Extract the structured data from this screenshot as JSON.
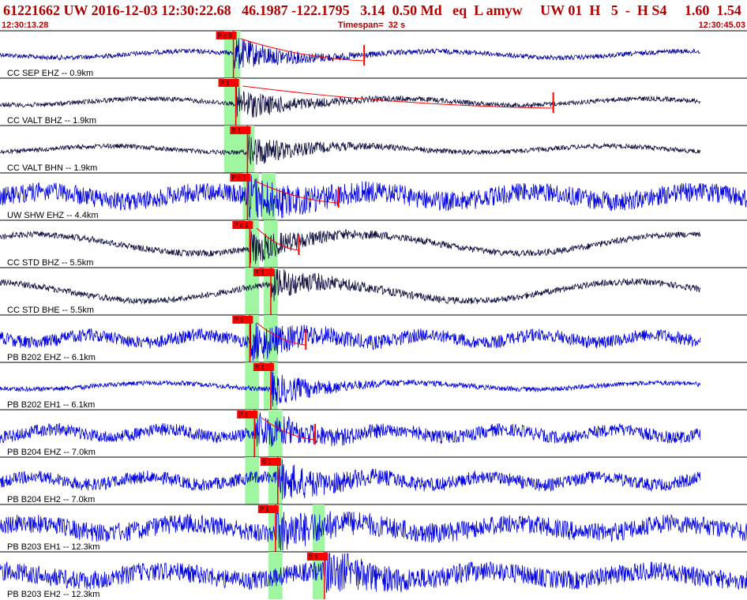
{
  "header": {
    "title": "61221662 UW 2016-12-03 12:30:22.68   46.1987 -122.1795   3.14  0.50 Md   eq  L amyw     UW 01  H   5  -  H S4     1.60  1.54",
    "start_time": "12:30:13.28",
    "timespan": "Timespan=  32 s",
    "end_time": "12:30:45.03"
  },
  "colors": {
    "header_text": "#b00000",
    "trace_blue": "#0000e0",
    "trace_dark": "#101040",
    "pick": "#ff0000",
    "window": "#a0f5a0",
    "separator": "#000000"
  },
  "chart_data": {
    "type": "line",
    "x_unit": "s",
    "xlim": [
      0,
      32
    ],
    "channels": [
      {
        "label": "CC SEP EHZ -- 0.9km",
        "color": "dark_blue",
        "amp": "low",
        "p_window": [
          9.6,
          10.3
        ],
        "p_pick": {
          "label": "P c 0",
          "time": 10.0
        },
        "coda_mark": 15.6
      },
      {
        "label": "CC VALT BHZ -- 1.9km",
        "color": "dark",
        "amp": "low",
        "p_window": [
          9.6,
          10.3
        ],
        "p_pick": {
          "label": "P  1",
          "time": 10.1
        },
        "coda_mark": 23.7
      },
      {
        "label": "CC VALT BHN -- 1.9km",
        "color": "dark",
        "amp": "low",
        "p_window": [
          9.6,
          10.3
        ],
        "s_window": [
          10.3,
          10.9
        ],
        "s_pick": {
          "label": "S  1",
          "time": 10.6
        }
      },
      {
        "label": "UW SHW EHZ -- 4.4km",
        "color": "blue",
        "amp": "high",
        "p_window": [
          10.4,
          11.1
        ],
        "s_window": [
          11.2,
          11.8
        ],
        "p_pick": {
          "label": "P c 1",
          "time": 10.6
        },
        "coda_mark": 14.5
      },
      {
        "label": "CC STD BHZ -- 5.5km",
        "color": "dark",
        "amp": "slow",
        "p_window": [
          10.5,
          11.1
        ],
        "s_window": [
          11.3,
          11.9
        ],
        "p_pick": {
          "label": "P c 1",
          "time": 10.7
        },
        "coda_mark": 12.8
      },
      {
        "label": "CC STD BHE -- 5.5km",
        "color": "dark",
        "amp": "slow",
        "p_window": [
          10.5,
          11.1
        ],
        "s_window": [
          11.3,
          11.9
        ],
        "s_pick": {
          "label": "S  1",
          "time": 11.6
        }
      },
      {
        "label": "PB B202 EHZ -- 6.1km",
        "color": "blue",
        "amp": "mid",
        "p_window": [
          10.5,
          11.1
        ],
        "s_window": [
          11.3,
          11.9
        ],
        "p_pick": {
          "label": "P  1",
          "time": 10.7
        },
        "coda_mark": 13.1
      },
      {
        "label": "PB B202 EH1 -- 6.1km",
        "color": "blue",
        "amp": "low",
        "p_window": [
          10.5,
          11.1
        ],
        "s_window": [
          11.3,
          11.9
        ],
        "s_pick": {
          "label": "S  1",
          "time": 11.6
        }
      },
      {
        "label": "PB B204 EHZ -- 7.0km",
        "color": "blue",
        "amp": "mid",
        "p_window": [
          10.5,
          11.1
        ],
        "s_window": [
          11.5,
          12.1
        ],
        "p_pick": {
          "label": "P  1",
          "time": 10.9
        },
        "coda_mark": 13.5
      },
      {
        "label": "PB B204 EH2 -- 7.0km",
        "color": "blue",
        "amp": "mid",
        "p_window": [
          10.5,
          11.1
        ],
        "s_window": [
          11.5,
          12.1
        ],
        "s_pick": {
          "label": "S  1",
          "time": 11.9
        }
      },
      {
        "label": "PB B203 EH1 -- 12.3km",
        "color": "blue",
        "amp": "high",
        "s_window": [
          11.5,
          12.1
        ],
        "p_window_2": [
          13.4,
          13.9
        ],
        "p_pick": {
          "label": "P  1",
          "time": 11.8
        }
      },
      {
        "label": "PB B203 EH2 -- 12.3km",
        "color": "blue",
        "amp": "high",
        "s_window": [
          11.5,
          12.1
        ],
        "p_window_2": [
          13.4,
          13.9
        ],
        "s_pick": {
          "label": "S  1",
          "time": 13.9
        }
      }
    ]
  }
}
